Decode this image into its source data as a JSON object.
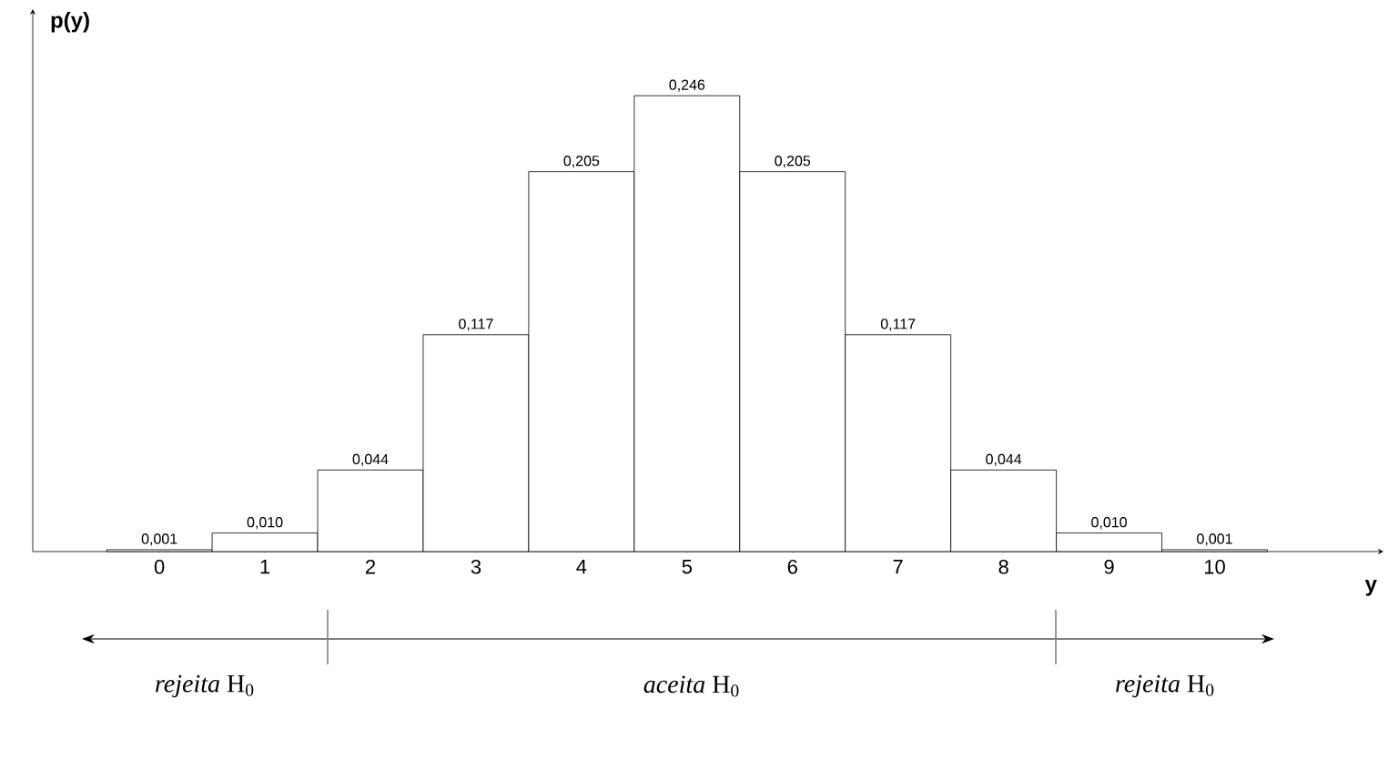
{
  "chart_data": {
    "type": "bar",
    "xlabel": "y",
    "ylabel": "p(y)",
    "categories": [
      "0",
      "1",
      "2",
      "3",
      "4",
      "5",
      "6",
      "7",
      "8",
      "9",
      "10"
    ],
    "values": [
      0.001,
      0.01,
      0.044,
      0.117,
      0.205,
      0.246,
      0.205,
      0.117,
      0.044,
      0.01,
      0.001
    ],
    "value_labels": [
      "0,001",
      "0,010",
      "0,044",
      "0,117",
      "0,205",
      "0,246",
      "0,205",
      "0,117",
      "0,044",
      "0,010",
      "0,001"
    ],
    "color": "#ffffff",
    "annotations": [
      "*rejeita* H$_{0}$",
      "*aceita* H$_{0}$",
      "*rejeita* H$_{0}$"
    ]
  }
}
